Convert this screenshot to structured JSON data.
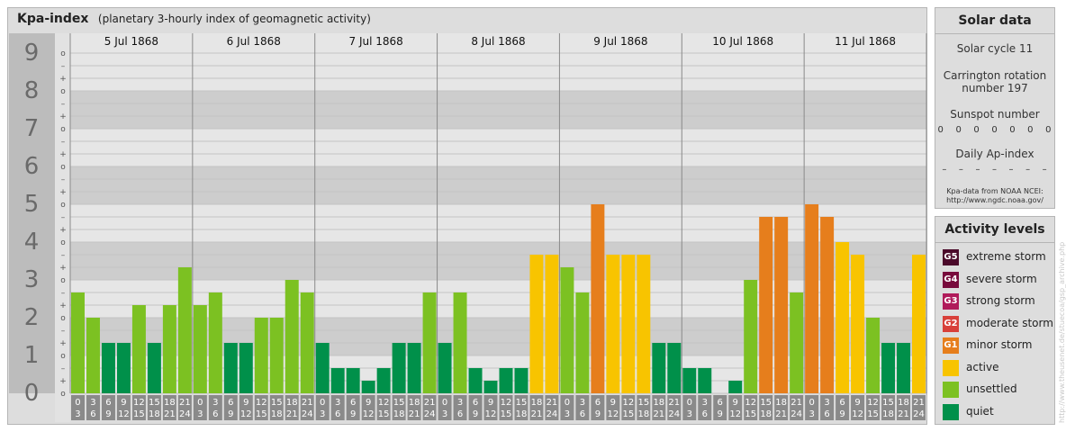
{
  "main": {
    "title": "Kpa-index",
    "subtitle": "(planetary 3-hourly index of geomagnetic activity)"
  },
  "solar": {
    "heading": "Solar data",
    "cycle": "Solar cycle 11",
    "carrington_line1": "Carrington rotation",
    "carrington_line2": "number 197",
    "sunspot_label": "Sunspot number",
    "sunspot_values": [
      "0",
      "0",
      "0",
      "0",
      "0",
      "0",
      "0"
    ],
    "ap_label": "Daily Ap-index",
    "ap_values": [
      "–",
      "–",
      "–",
      "–",
      "–",
      "–",
      "–"
    ],
    "source_line1": "Kpa-data from NOAA NCEI:",
    "source_line2": "http://www.ngdc.noaa.gov/"
  },
  "legend": {
    "heading": "Activity levels",
    "items": [
      {
        "badge": "G5",
        "label": "extreme storm",
        "color": "#4b0a2a"
      },
      {
        "badge": "G4",
        "label": "severe storm",
        "color": "#780a3c"
      },
      {
        "badge": "G3",
        "label": "strong storm",
        "color": "#b01a5a"
      },
      {
        "badge": "G2",
        "label": "moderate storm",
        "color": "#d8403a"
      },
      {
        "badge": "G1",
        "label": "minor storm",
        "color": "#e67e1c"
      },
      {
        "badge": "",
        "label": "active",
        "color": "#f8c400"
      },
      {
        "badge": "",
        "label": "unsettled",
        "color": "#7cc122"
      },
      {
        "badge": "",
        "label": "quiet",
        "color": "#00904a"
      }
    ]
  },
  "watermark": "http://www.theusenet.de/stuecoa/gsp_archive.php",
  "chart_data": {
    "type": "bar",
    "title": "Kpa-index",
    "ylim": [
      0,
      9
    ],
    "y_ticks": [
      "0",
      "1",
      "2",
      "3",
      "4",
      "5",
      "6",
      "7",
      "8",
      "9"
    ],
    "minor_ticks": [
      "o",
      "+",
      "–"
    ],
    "days": [
      "5 Jul 1868",
      "6 Jul 1868",
      "7 Jul 1868",
      "8 Jul 1868",
      "9 Jul 1868",
      "10 Jul 1868",
      "11 Jul 1868"
    ],
    "slot_top": [
      "0",
      "3",
      "6",
      "9",
      "12",
      "15",
      "18",
      "21"
    ],
    "slot_bottom": [
      "3",
      "6",
      "9",
      "12",
      "15",
      "18",
      "21",
      "24"
    ],
    "values": [
      [
        2.667,
        2.0,
        1.333,
        1.333,
        2.333,
        1.333,
        2.333,
        3.333
      ],
      [
        2.333,
        2.667,
        1.333,
        1.333,
        2.0,
        2.0,
        3.0,
        2.667
      ],
      [
        1.333,
        0.667,
        0.667,
        0.333,
        0.667,
        1.333,
        1.333,
        2.667
      ],
      [
        1.333,
        2.667,
        0.667,
        0.333,
        0.667,
        0.667,
        3.667,
        3.667
      ],
      [
        3.333,
        2.667,
        5.0,
        3.667,
        3.667,
        3.667,
        1.333,
        1.333
      ],
      [
        0.667,
        0.667,
        0.0,
        0.333,
        3.0,
        4.667,
        4.667,
        2.667
      ],
      [
        5.0,
        4.667,
        4.0,
        3.667,
        2.0,
        1.333,
        1.333,
        3.667
      ]
    ],
    "level_colors": {
      "quiet": "#00904a",
      "unsettled": "#7cc122",
      "active": "#f8c400",
      "minor storm": "#e67e1c"
    }
  }
}
